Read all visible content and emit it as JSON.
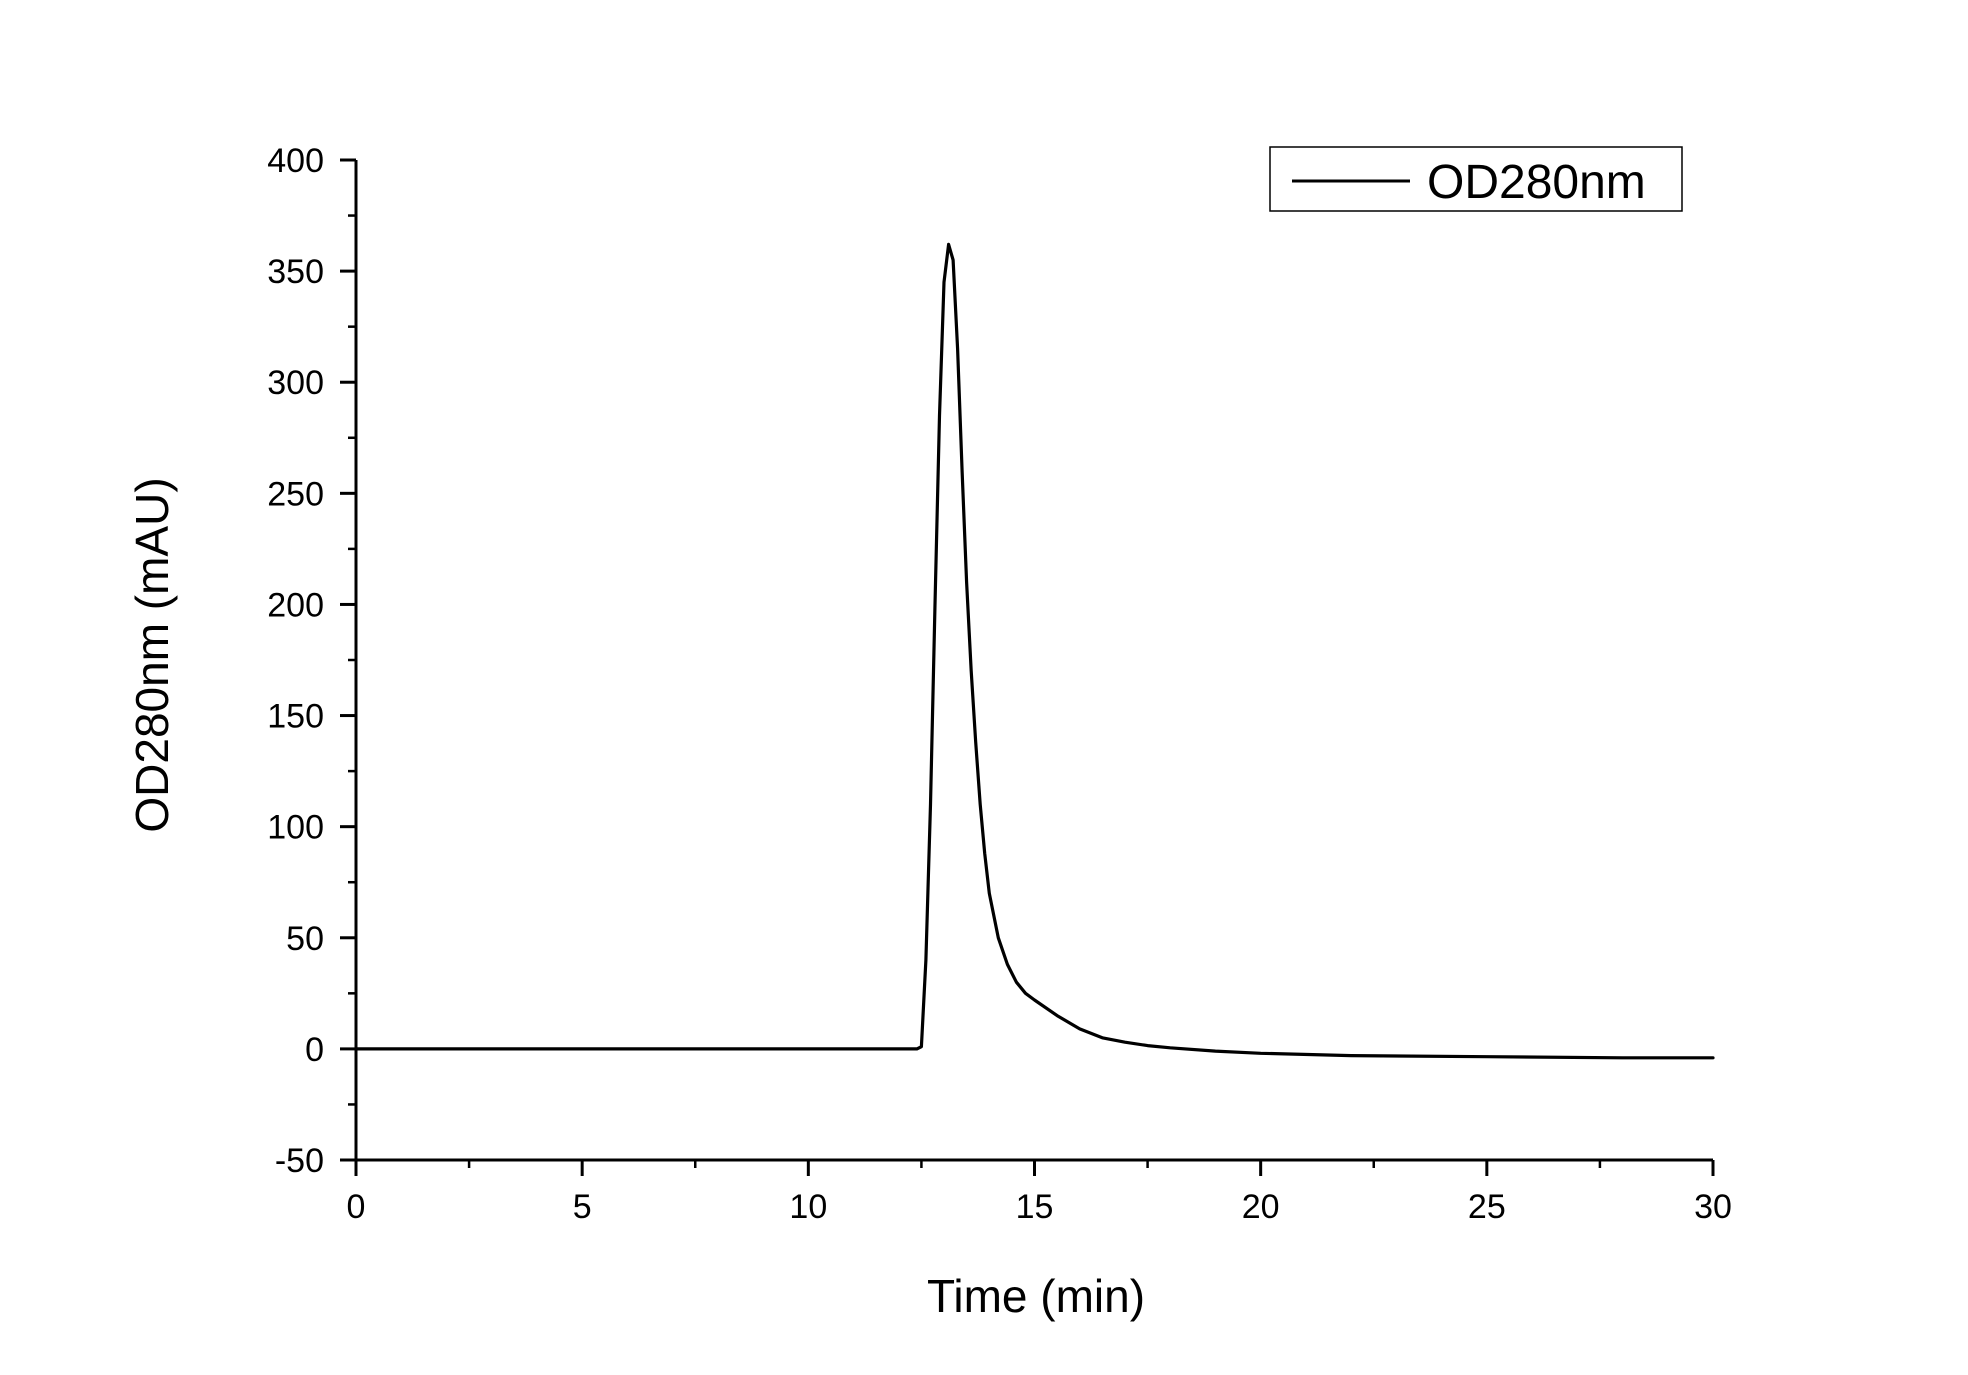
{
  "chart_data": {
    "type": "line",
    "xlabel": "Time (min)",
    "ylabel": "OD280nm (mAU)",
    "xlim": [
      0,
      30
    ],
    "ylim": [
      -50,
      400
    ],
    "x_ticks": [
      0,
      5,
      10,
      15,
      20,
      25,
      30
    ],
    "x_minor_step": 2.5,
    "y_ticks": [
      -50,
      0,
      50,
      100,
      150,
      200,
      250,
      300,
      350,
      400
    ],
    "y_minor_step": 25,
    "grid": false,
    "legend": {
      "position": "top-right",
      "entries": [
        "OD280nm"
      ]
    },
    "line_color": "#000000",
    "series": [
      {
        "name": "OD280nm",
        "x": [
          0,
          5,
          10,
          12.4,
          12.5,
          12.6,
          12.7,
          12.8,
          12.9,
          13.0,
          13.1,
          13.2,
          13.3,
          13.4,
          13.5,
          13.6,
          13.7,
          13.8,
          13.9,
          14.0,
          14.2,
          14.4,
          14.6,
          14.8,
          15.0,
          15.5,
          16.0,
          16.5,
          17.0,
          17.5,
          18.0,
          19.0,
          20.0,
          22.0,
          25.0,
          28.0,
          30.0
        ],
        "y": [
          0,
          0,
          0,
          0,
          1,
          40,
          110,
          200,
          285,
          345,
          362,
          355,
          315,
          260,
          210,
          170,
          138,
          110,
          88,
          70,
          50,
          38,
          30,
          25,
          22,
          15,
          9,
          5,
          3,
          1.5,
          0.5,
          -1,
          -2,
          -3,
          -3.5,
          -4,
          -4
        ]
      }
    ]
  }
}
